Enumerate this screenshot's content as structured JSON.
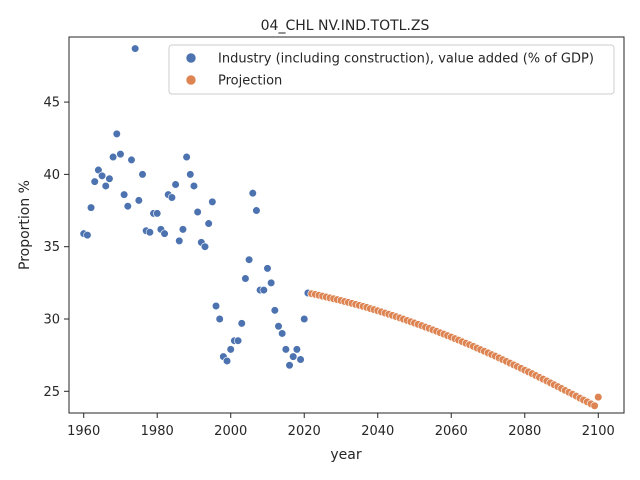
{
  "chart_data": {
    "type": "scatter",
    "title": "04_CHL NV.IND.TOTL.ZS",
    "xlabel": "year",
    "ylabel": "Proportion %",
    "xlim": [
      1956,
      2107
    ],
    "ylim": [
      23.5,
      49.5
    ],
    "x_ticks": [
      1960,
      1980,
      2000,
      2020,
      2040,
      2060,
      2080,
      2100
    ],
    "y_ticks": [
      25,
      30,
      35,
      40,
      45
    ],
    "grid": false,
    "legend_position": "top-right",
    "series": [
      {
        "name": "Industry (including construction), value added (% of GDP)",
        "color": "#4c72b0",
        "points": [
          [
            1960,
            35.9
          ],
          [
            1961,
            35.8
          ],
          [
            1962,
            37.7
          ],
          [
            1963,
            39.5
          ],
          [
            1964,
            40.3
          ],
          [
            1965,
            39.9
          ],
          [
            1966,
            39.2
          ],
          [
            1967,
            39.7
          ],
          [
            1968,
            41.2
          ],
          [
            1969,
            42.8
          ],
          [
            1970,
            41.4
          ],
          [
            1971,
            38.6
          ],
          [
            1972,
            37.8
          ],
          [
            1973,
            41.0
          ],
          [
            1974,
            48.7
          ],
          [
            1975,
            38.2
          ],
          [
            1976,
            40.0
          ],
          [
            1977,
            36.1
          ],
          [
            1978,
            36.0
          ],
          [
            1979,
            37.3
          ],
          [
            1980,
            37.3
          ],
          [
            1981,
            36.2
          ],
          [
            1982,
            35.9
          ],
          [
            1983,
            38.6
          ],
          [
            1984,
            38.4
          ],
          [
            1985,
            39.3
          ],
          [
            1986,
            35.4
          ],
          [
            1987,
            36.2
          ],
          [
            1988,
            41.2
          ],
          [
            1989,
            40.0
          ],
          [
            1990,
            39.2
          ],
          [
            1991,
            37.4
          ],
          [
            1992,
            35.3
          ],
          [
            1993,
            35.0
          ],
          [
            1994,
            36.6
          ],
          [
            1995,
            38.1
          ],
          [
            1996,
            30.9
          ],
          [
            1997,
            30.0
          ],
          [
            1998,
            27.4
          ],
          [
            1999,
            27.1
          ],
          [
            2000,
            27.9
          ],
          [
            2001,
            28.5
          ],
          [
            2002,
            28.5
          ],
          [
            2003,
            29.7
          ],
          [
            2004,
            32.8
          ],
          [
            2005,
            34.1
          ],
          [
            2006,
            38.7
          ],
          [
            2007,
            37.5
          ],
          [
            2008,
            32.0
          ],
          [
            2009,
            32.0
          ],
          [
            2010,
            33.5
          ],
          [
            2011,
            32.5
          ],
          [
            2012,
            30.6
          ],
          [
            2013,
            29.5
          ],
          [
            2014,
            29.0
          ],
          [
            2015,
            27.9
          ],
          [
            2016,
            26.8
          ],
          [
            2017,
            27.4
          ],
          [
            2018,
            27.9
          ],
          [
            2019,
            27.2
          ],
          [
            2020,
            30.0
          ],
          [
            2021,
            31.8
          ]
        ]
      },
      {
        "name": "Projection",
        "color": "#dd8452",
        "points": [
          [
            2022,
            31.75
          ],
          [
            2023,
            31.7
          ],
          [
            2024,
            31.64
          ],
          [
            2025,
            31.58
          ],
          [
            2026,
            31.52
          ],
          [
            2027,
            31.46
          ],
          [
            2028,
            31.4
          ],
          [
            2029,
            31.34
          ],
          [
            2030,
            31.28
          ],
          [
            2031,
            31.21
          ],
          [
            2032,
            31.15
          ],
          [
            2033,
            31.08
          ],
          [
            2034,
            31.01
          ],
          [
            2035,
            30.94
          ],
          [
            2036,
            30.87
          ],
          [
            2037,
            30.8
          ],
          [
            2038,
            30.72
          ],
          [
            2039,
            30.65
          ],
          [
            2040,
            30.57
          ],
          [
            2041,
            30.49
          ],
          [
            2042,
            30.41
          ],
          [
            2043,
            30.33
          ],
          [
            2044,
            30.25
          ],
          [
            2045,
            30.16
          ],
          [
            2046,
            30.08
          ],
          [
            2047,
            29.99
          ],
          [
            2048,
            29.9
          ],
          [
            2049,
            29.81
          ],
          [
            2050,
            29.72
          ],
          [
            2051,
            29.63
          ],
          [
            2052,
            29.54
          ],
          [
            2053,
            29.44
          ],
          [
            2054,
            29.35
          ],
          [
            2055,
            29.25
          ],
          [
            2056,
            29.15
          ],
          [
            2057,
            29.05
          ],
          [
            2058,
            28.95
          ],
          [
            2059,
            28.85
          ],
          [
            2060,
            28.75
          ],
          [
            2061,
            28.64
          ],
          [
            2062,
            28.54
          ],
          [
            2063,
            28.43
          ],
          [
            2064,
            28.32
          ],
          [
            2065,
            28.22
          ],
          [
            2066,
            28.11
          ],
          [
            2067,
            27.99
          ],
          [
            2068,
            27.88
          ],
          [
            2069,
            27.77
          ],
          [
            2070,
            27.66
          ],
          [
            2071,
            27.54
          ],
          [
            2072,
            27.43
          ],
          [
            2073,
            27.31
          ],
          [
            2074,
            27.19
          ],
          [
            2075,
            27.07
          ],
          [
            2076,
            26.95
          ],
          [
            2077,
            26.83
          ],
          [
            2078,
            26.71
          ],
          [
            2079,
            26.59
          ],
          [
            2080,
            26.46
          ],
          [
            2081,
            26.34
          ],
          [
            2082,
            26.22
          ],
          [
            2083,
            26.09
          ],
          [
            2084,
            25.96
          ],
          [
            2085,
            25.84
          ],
          [
            2086,
            25.71
          ],
          [
            2087,
            25.58
          ],
          [
            2088,
            25.45
          ],
          [
            2089,
            25.32
          ],
          [
            2090,
            25.19
          ],
          [
            2091,
            25.06
          ],
          [
            2092,
            24.93
          ],
          [
            2093,
            24.8
          ],
          [
            2094,
            24.67
          ],
          [
            2095,
            24.53
          ],
          [
            2096,
            24.4
          ],
          [
            2097,
            24.27
          ],
          [
            2098,
            24.13
          ],
          [
            2099,
            24.0
          ],
          [
            2100,
            24.6
          ]
        ]
      }
    ]
  }
}
